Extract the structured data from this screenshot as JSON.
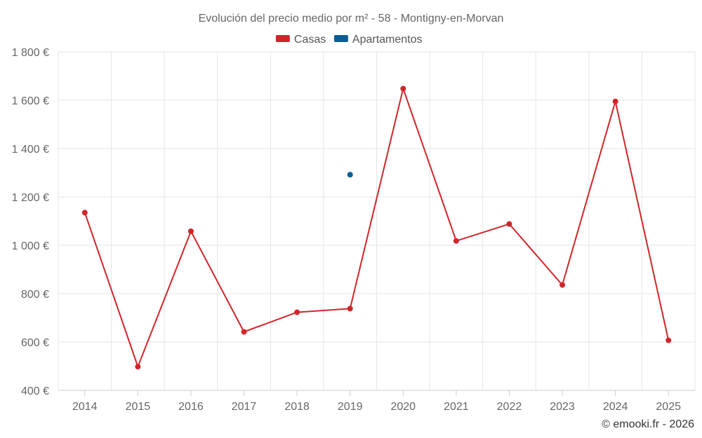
{
  "chart_data": {
    "type": "line",
    "title": "Evolución del precio medio por m² - 58 - Montigny-en-Morvan",
    "categories": [
      "2014",
      "2015",
      "2016",
      "2017",
      "2018",
      "2019",
      "2020",
      "2021",
      "2022",
      "2023",
      "2024",
      "2025"
    ],
    "series": [
      {
        "name": "Casas",
        "color": "#d0262a",
        "values": [
          1135,
          498,
          1058,
          642,
          723,
          738,
          1648,
          1018,
          1088,
          836,
          1595,
          607
        ]
      },
      {
        "name": "Apartamentos",
        "color": "#0b5e95",
        "values": [
          null,
          null,
          null,
          null,
          null,
          1292,
          null,
          null,
          null,
          null,
          null,
          null
        ]
      }
    ],
    "ylim": [
      400,
      1800
    ],
    "yticks": [
      400,
      600,
      800,
      1000,
      1200,
      1400,
      1600,
      1800
    ],
    "ytick_labels": [
      "400 €",
      "600 €",
      "800 €",
      "1 000 €",
      "1 200 €",
      "1 400 €",
      "1 600 €",
      "1 800 €"
    ],
    "xlabel": "",
    "ylabel": "",
    "grid": true,
    "legend_position": "top-center"
  },
  "credit": "© emooki.fr - 2026"
}
